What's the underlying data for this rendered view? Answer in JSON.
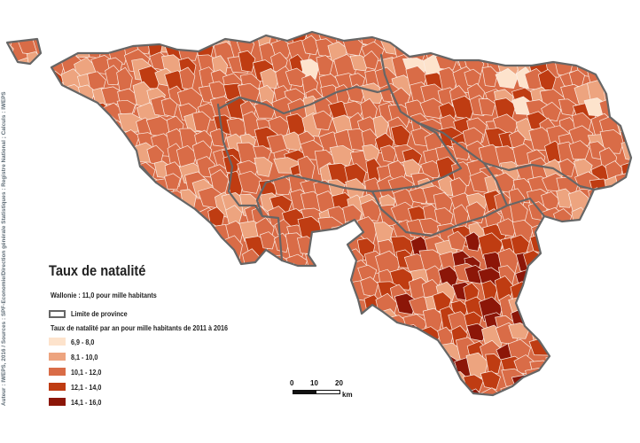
{
  "map": {
    "title": "Taux de natalité",
    "subtitle": "Wallonie : 11,0 pour mille habitants",
    "source_credit": "Auteur : IWEPS, 2016 / Sources : SPF-Economie/Direction générale Statistiques : Registre National ; Calculs : IWEPS",
    "province_legend_label": "Limite de province",
    "legend_heading": "Taux de natalité par an pour mille habitants de 2011 à 2016",
    "legend_classes": [
      {
        "label": "6,9 - 8,0",
        "color": "#fde3cc"
      },
      {
        "label": "8,1 - 10,0",
        "color": "#eda47f"
      },
      {
        "label": "10,1 - 12,0",
        "color": "#d96c47"
      },
      {
        "label": "12,1 - 14,0",
        "color": "#bf3c12"
      },
      {
        "label": "14,1 - 16,0",
        "color": "#8c1608"
      }
    ],
    "scale": {
      "ticks": [
        "0",
        "10",
        "20"
      ],
      "unit": "km"
    },
    "boundary_color": "#666666"
  }
}
